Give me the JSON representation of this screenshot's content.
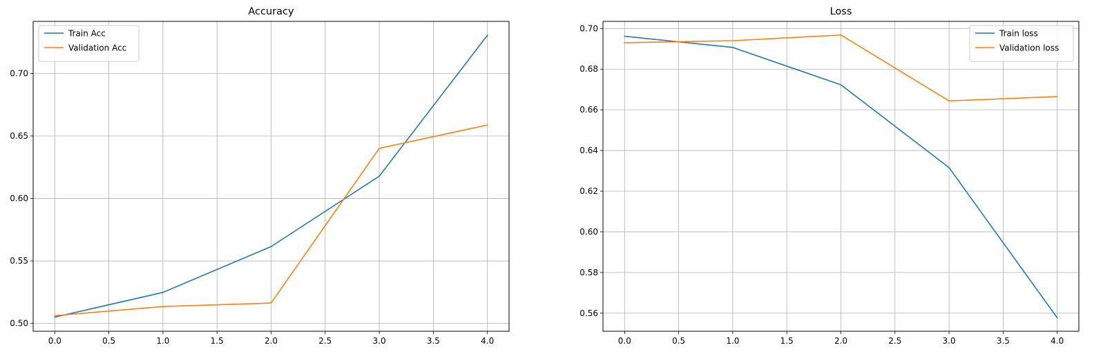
{
  "chart_data": [
    {
      "type": "line",
      "title": "Accuracy",
      "xlabel": "",
      "ylabel": "",
      "x": [
        0,
        1,
        2,
        3,
        4
      ],
      "xlim": [
        -0.2,
        4.2
      ],
      "ylim": [
        0.4937,
        0.7417
      ],
      "xticks": [
        0.0,
        0.5,
        1.0,
        1.5,
        2.0,
        2.5,
        3.0,
        3.5,
        4.0
      ],
      "xtick_labels": [
        "0.0",
        "0.5",
        "1.0",
        "1.5",
        "2.0",
        "2.5",
        "3.0",
        "3.5",
        "4.0"
      ],
      "yticks": [
        0.5,
        0.55,
        0.6,
        0.65,
        0.7
      ],
      "ytick_labels": [
        "0.50",
        "0.55",
        "0.60",
        "0.65",
        "0.70"
      ],
      "grid": true,
      "legend_position": "top-left",
      "series": [
        {
          "name": "Train Acc",
          "color": "#1f77b4",
          "values": [
            0.505,
            0.5248,
            0.5615,
            0.6178,
            0.7306
          ]
        },
        {
          "name": "Validation Acc",
          "color": "#ff7f0e",
          "values": [
            0.5062,
            0.5135,
            0.5163,
            0.6401,
            0.6588
          ]
        }
      ]
    },
    {
      "type": "line",
      "title": "Loss",
      "xlabel": "",
      "ylabel": "",
      "x": [
        0,
        1,
        2,
        3,
        4
      ],
      "xlim": [
        -0.2,
        4.2
      ],
      "ylim": [
        0.5511,
        0.7035
      ],
      "xticks": [
        0.0,
        0.5,
        1.0,
        1.5,
        2.0,
        2.5,
        3.0,
        3.5,
        4.0
      ],
      "xtick_labels": [
        "0.0",
        "0.5",
        "1.0",
        "1.5",
        "2.0",
        "2.5",
        "3.0",
        "3.5",
        "4.0"
      ],
      "yticks": [
        0.56,
        0.58,
        0.6,
        0.62,
        0.64,
        0.66,
        0.68,
        0.7
      ],
      "ytick_labels": [
        "0.56",
        "0.58",
        "0.60",
        "0.62",
        "0.64",
        "0.66",
        "0.68",
        "0.70"
      ],
      "grid": true,
      "legend_position": "top-right",
      "series": [
        {
          "name": "Train loss",
          "color": "#1f77b4",
          "values": [
            0.6962,
            0.6907,
            0.6723,
            0.6316,
            0.5577
          ]
        },
        {
          "name": "Validation loss",
          "color": "#ff7f0e",
          "values": [
            0.693,
            0.694,
            0.6968,
            0.6644,
            0.6665
          ]
        }
      ]
    }
  ]
}
